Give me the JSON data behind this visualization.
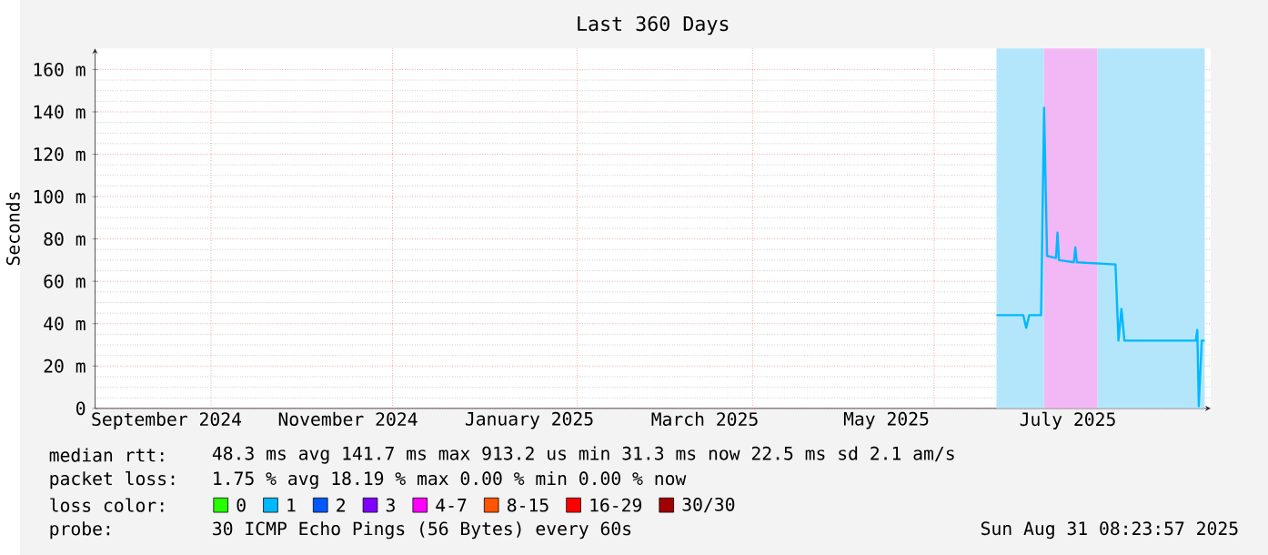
{
  "chart_data": {
    "type": "line",
    "title": "Last 360 Days",
    "ylabel": "Seconds",
    "legend_title": "loss color:",
    "x": [
      "2025-06-22",
      "2025-07-01",
      "2025-07-02",
      "2025-07-03",
      "2025-07-07",
      "2025-07-08",
      "2025-07-09",
      "2025-07-12",
      "2025-07-12T12:00",
      "2025-07-13",
      "2025-07-18",
      "2025-07-18T12:00",
      "2025-07-19",
      "2025-08-01",
      "2025-08-02",
      "2025-08-03",
      "2025-08-04",
      "2025-08-28",
      "2025-08-28T12:00",
      "2025-08-29",
      "2025-08-30",
      "2025-08-31"
    ],
    "series": [
      {
        "color": "#00b8ff",
        "values": [
          44,
          44,
          38,
          44,
          44,
          142,
          72,
          71,
          83,
          70,
          69,
          76,
          69,
          68,
          32,
          47,
          32,
          32,
          37,
          1,
          32,
          32
        ]
      },
      {
        "name": "0",
        "color": "#26ff00",
        "values": [
          null,
          null,
          null,
          null,
          null,
          null,
          null,
          null,
          null,
          null,
          null,
          null,
          null,
          null,
          null,
          null,
          null,
          null,
          null,
          null,
          null,
          null
        ]
      },
      {
        "name": "1",
        "color": "#00b8ff",
        "values": [
          null,
          null,
          null,
          null,
          null,
          null,
          null,
          null,
          null,
          null,
          null,
          null,
          null,
          null,
          null,
          null,
          null,
          null,
          null,
          null,
          null,
          null
        ]
      },
      {
        "name": "2",
        "color": "#0059ff",
        "values": [
          null,
          null,
          null,
          null,
          null,
          null,
          null,
          null,
          null,
          null,
          null,
          null,
          null,
          null,
          null,
          null,
          null,
          null,
          null,
          null,
          null,
          null
        ]
      },
      {
        "name": "3",
        "color": "#7e00ff",
        "values": [
          null,
          null,
          null,
          null,
          null,
          null,
          null,
          null,
          null,
          null,
          null,
          null,
          null,
          null,
          null,
          null,
          null,
          null,
          null,
          null,
          null,
          null
        ]
      },
      {
        "name": "4-7",
        "color": "#ff00ff",
        "values": [
          null,
          null,
          null,
          null,
          null,
          null,
          null,
          null,
          null,
          null,
          null,
          null,
          null,
          null,
          null,
          null,
          null,
          null,
          null,
          null,
          null,
          null
        ]
      },
      {
        "name": "8-15",
        "color": "#ff5500",
        "values": [
          null,
          null,
          null,
          null,
          null,
          null,
          null,
          null,
          null,
          null,
          null,
          null,
          null,
          null,
          null,
          null,
          null,
          null,
          null,
          null,
          null,
          null
        ]
      },
      {
        "name": "16-29",
        "color": "#ff0000",
        "values": [
          null,
          null,
          null,
          null,
          null,
          null,
          null,
          null,
          null,
          null,
          null,
          null,
          null,
          null,
          null,
          null,
          null,
          null,
          null,
          null,
          null,
          null
        ]
      },
      {
        "name": "30/30",
        "color": "#a10000",
        "values": [
          null,
          null,
          null,
          null,
          null,
          null,
          null,
          null,
          null,
          null,
          null,
          null,
          null,
          null,
          null,
          null,
          null,
          null,
          null,
          null,
          null,
          null
        ]
      }
    ],
    "xlim": [
      "2024-08-23",
      "2025-09-02"
    ],
    "xticks": [
      {
        "value": "2024-09-16",
        "label": "September 2024"
      },
      {
        "value": "2024-11-16",
        "label": "November 2024"
      },
      {
        "value": "2025-01-16",
        "label": "January 2025"
      },
      {
        "value": "2025-03-16",
        "label": "March 2025"
      },
      {
        "value": "2025-05-16",
        "label": "May 2025"
      },
      {
        "value": "2025-07-16",
        "label": "July 2025"
      },
      {
        "value": "2024-10-01",
        "label": null
      },
      {
        "value": "2024-12-01",
        "label": null
      },
      {
        "value": "2025-02-01",
        "label": null
      },
      {
        "value": "2025-04-01",
        "label": null
      },
      {
        "value": "2025-06-01",
        "label": null
      },
      {
        "value": "2025-08-01",
        "label": null
      }
    ],
    "ylim": [
      0,
      170
    ],
    "yticks": [
      0,
      {
        "value": 20,
        "label": "20 m"
      },
      {
        "value": 40,
        "label": "40 m"
      },
      {
        "value": 60,
        "label": "60 m"
      },
      {
        "value": 80,
        "label": "80 m"
      },
      {
        "value": 100,
        "label": "100 m"
      },
      {
        "value": 120,
        "label": "120 m"
      },
      {
        "value": 140,
        "label": "140 m"
      },
      {
        "value": 160,
        "label": "160 m"
      }
    ],
    "bands": [
      {
        "axis": "x",
        "from": "2025-06-22",
        "to": "2025-07-08",
        "color": "#b3e6fb"
      },
      {
        "axis": "x",
        "from": "2025-07-08",
        "to": "2025-07-26",
        "color": "#f2b8f6"
      },
      {
        "axis": "x",
        "from": "2025-07-26",
        "to": "2025-08-31",
        "color": "#b3e6fb"
      }
    ],
    "grid": true,
    "legend": "bottom",
    "annotations": [
      "median rtt:",
      "48.3 ms avg  141.7 ms max  913.2 us min  31.3 ms now  22.5 ms sd  2.1  am/s",
      "packet loss:",
      "1.75 % avg  18.19 % max  0.00 % min  0.00 % now",
      "probe:",
      "30 ICMP Echo Pings (56 Bytes) every 60s",
      "Sun Aug 31 08:23:57 2025"
    ]
  }
}
